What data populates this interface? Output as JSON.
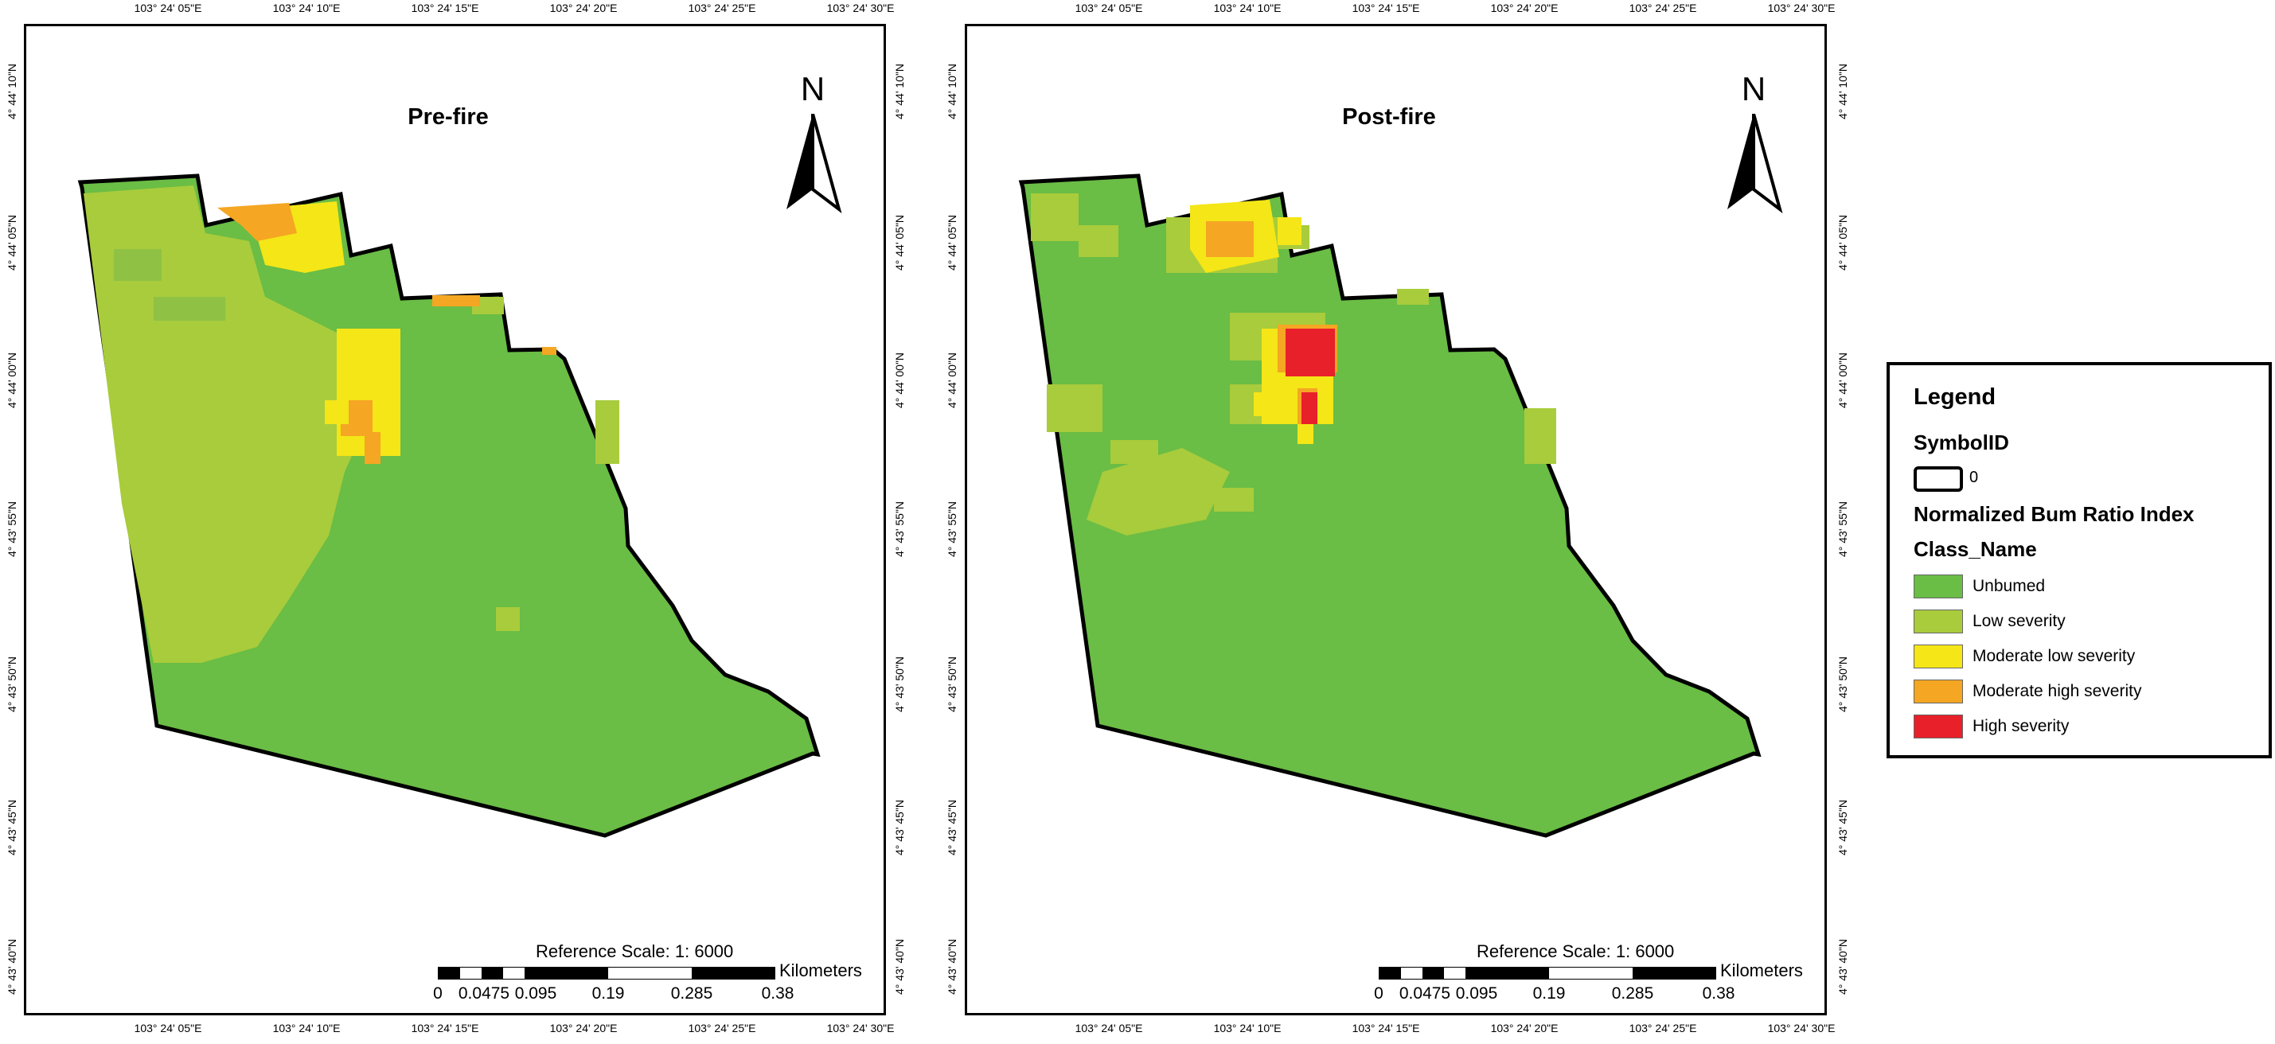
{
  "maps": [
    {
      "title": "Pre-fire",
      "north_label": "N",
      "reference_scale": "Reference Scale: 1: 6000",
      "scale_unit": "Kilometers",
      "scale_labels": [
        "0",
        "0.0475",
        "0.095",
        "0.19",
        "0.285",
        "0.38"
      ]
    },
    {
      "title": "Post-fire",
      "north_label": "N",
      "reference_scale": "Reference Scale: 1: 6000",
      "scale_unit": "Kilometers",
      "scale_labels": [
        "0",
        "0.0475",
        "0.095",
        "0.19",
        "0.285",
        "0.38"
      ]
    }
  ],
  "longitude_ticks": [
    "103° 24' 05\"E",
    "103° 24' 10\"E",
    "103° 24' 15\"E",
    "103° 24' 20\"E",
    "103° 24' 25\"E",
    "103° 24' 30\"E"
  ],
  "latitude_ticks": [
    "4° 44' 10\"N",
    "4° 44' 05\"N",
    "4° 44' 00\"N",
    "4° 43' 55\"N",
    "4° 43' 50\"N",
    "4° 43' 45\"N",
    "4° 43' 40\"N"
  ],
  "legend": {
    "title": "Legend",
    "symbol_heading": "SymbolID",
    "symbol_value": "0",
    "index_heading": "Normalized Bum Ratio Index",
    "class_heading": "Class_Name",
    "classes": [
      {
        "label": "Unbumed",
        "color": "#6abd45"
      },
      {
        "label": "Low severity",
        "color": "#a8cc3c"
      },
      {
        "label": "Moderate low severity",
        "color": "#f4e617"
      },
      {
        "label": "Moderate high severity",
        "color": "#f5a623"
      },
      {
        "label": "High severity",
        "color": "#e8202a"
      }
    ]
  }
}
